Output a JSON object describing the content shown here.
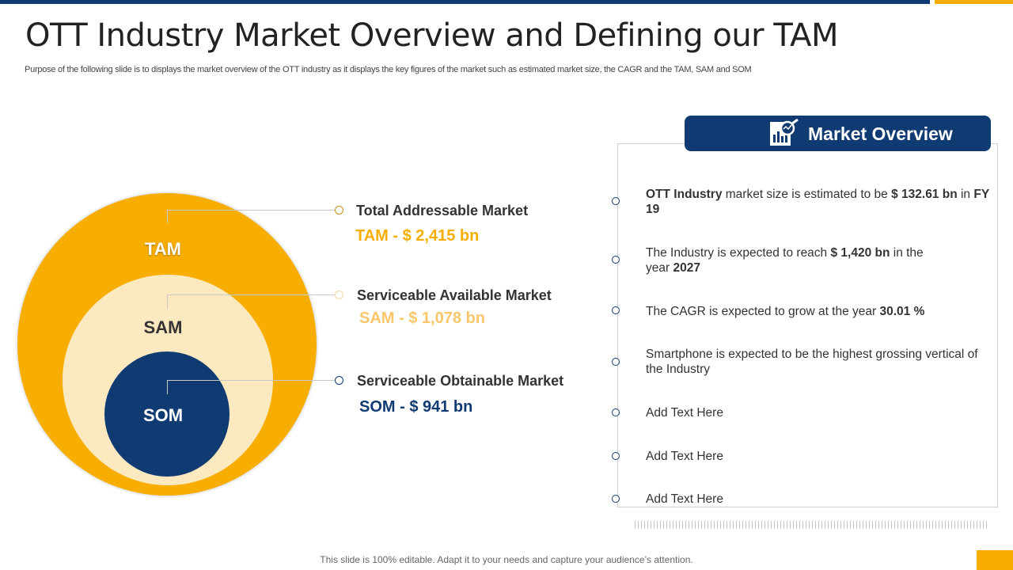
{
  "header": {
    "title": "OTT Industry Market Overview and Defining our TAM",
    "subtitle": "Purpose of the following slide is to displays the market overview of the OTT  industry as it displays the key figures of the market such as estimated market size, the CAGR and the TAM,  SAM  and SOM"
  },
  "colors": {
    "navy": "#0f3b72",
    "gold": "#f7ae00",
    "light_gold": "#fde9c0"
  },
  "circles": {
    "tam_label": "TAM",
    "sam_label": "SAM",
    "som_label": "SOM"
  },
  "markets": [
    {
      "name": "Total Addressable Market",
      "value": "TAM - $ 2,415 bn",
      "color": "#f7ae00"
    },
    {
      "name": "Serviceable Available Market",
      "value": "SAM - $ 1,078 bn",
      "color": "#f9c76a"
    },
    {
      "name": "Serviceable Obtainable Market",
      "value": "SOM - $ 941 bn",
      "color": "#0f3b72"
    }
  ],
  "overview": {
    "title": "Market Overview",
    "icon": "chart-magnifier-icon",
    "items": [
      {
        "pre": "",
        "b1": "OTT Industry",
        "mid": "  market size is estimated to be ",
        "b2": "$ 132.61 bn",
        "post": " in ",
        "b3": "FY 19"
      },
      {
        "pre": "The Industry  is expected to reach ",
        "b1": "$ 1,420 bn",
        "mid": " in the year ",
        "b2": "2027",
        "post": "",
        "b3": ""
      },
      {
        "pre": "The CAGR is expected to grow at the year ",
        "b1": "30.01 %",
        "mid": "",
        "b2": "",
        "post": "",
        "b3": ""
      },
      {
        "pre": "Smartphone is expected to be the highest grossing vertical of the Industry",
        "b1": "",
        "mid": "",
        "b2": "",
        "post": "",
        "b3": ""
      },
      {
        "pre": "Add Text Here",
        "b1": "",
        "mid": "",
        "b2": "",
        "post": "",
        "b3": ""
      },
      {
        "pre": "Add Text Here",
        "b1": "",
        "mid": "",
        "b2": "",
        "post": "",
        "b3": ""
      },
      {
        "pre": "Add Text Here",
        "b1": "",
        "mid": "",
        "b2": "",
        "post": "",
        "b3": ""
      }
    ]
  },
  "footer": {
    "note": "This slide is 100% editable. Adapt it to your needs and capture your audience’s attention."
  }
}
